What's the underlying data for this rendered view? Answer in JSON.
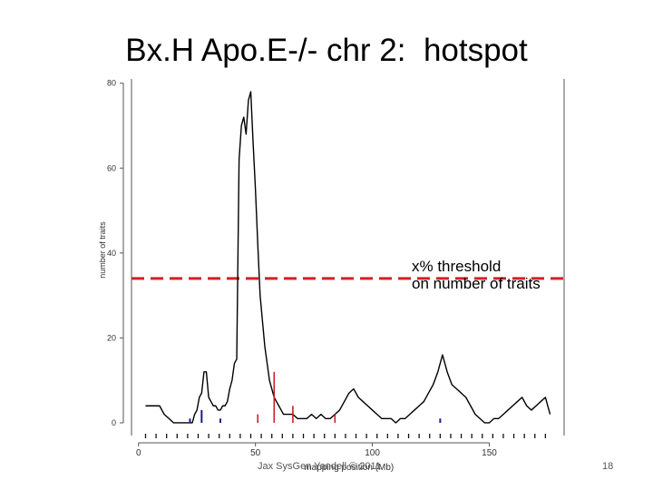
{
  "slide": {
    "title": "Bx.H Apo.E-/- chr 2:  hotspot",
    "footer_left": "Jax SysGen Yandell © 2011",
    "page_number": "18"
  },
  "annotation": {
    "line1": "x% threshold",
    "line2": "on number of traits"
  },
  "colors": {
    "curve": "#000000",
    "threshold": "#d42020",
    "red_marks": "#cc1f1f",
    "blue_marks": "#1a1a8c",
    "axis": "#555555"
  },
  "chart_data": {
    "type": "line",
    "xlabel": "mapping position (Mb)",
    "ylabel": "number of traits",
    "xlim": [
      -3,
      182
    ],
    "ylim": [
      -3,
      81
    ],
    "xticks": [
      0,
      50,
      100,
      150
    ],
    "yticks": [
      0,
      20,
      40,
      60,
      80
    ],
    "threshold": 34,
    "series": [
      {
        "x": [
          3,
          7,
          9,
          11,
          13,
          15,
          17,
          19,
          21,
          22,
          23,
          24,
          25,
          26,
          27,
          28,
          29,
          30,
          31,
          32,
          33,
          34,
          35,
          36,
          37,
          38,
          39,
          40,
          41,
          42,
          43,
          44,
          45,
          46,
          47,
          48,
          49,
          50,
          51,
          52,
          53,
          54,
          55,
          56,
          57,
          58,
          59,
          60,
          61,
          62,
          63,
          64,
          66,
          68,
          70,
          72,
          74,
          76,
          78,
          80,
          82,
          84,
          86,
          88,
          90,
          92,
          94,
          96,
          98,
          100,
          102,
          104,
          106,
          108,
          110,
          112,
          114,
          116,
          118,
          120,
          122,
          124,
          126,
          128,
          130,
          132,
          134,
          136,
          138,
          140,
          142,
          144,
          146,
          148,
          150,
          152,
          154,
          156,
          158,
          160,
          162,
          164,
          166,
          168,
          170,
          172,
          174,
          176
        ],
        "values": [
          4,
          4,
          4,
          2,
          1,
          0,
          0,
          0,
          0,
          0,
          0,
          2,
          3,
          6,
          7,
          12,
          12,
          6,
          5,
          4,
          4,
          3,
          3,
          4,
          4,
          5,
          8,
          10,
          14,
          15,
          62,
          70,
          72,
          68,
          76,
          78,
          66,
          55,
          42,
          30,
          24,
          18,
          14,
          10,
          8,
          6,
          5,
          4,
          3,
          2,
          2,
          2,
          2,
          1,
          1,
          1,
          2,
          1,
          2,
          1,
          1,
          2,
          3,
          5,
          7,
          8,
          6,
          5,
          4,
          3,
          2,
          1,
          1,
          1,
          0,
          1,
          1,
          2,
          3,
          4,
          5,
          7,
          9,
          12,
          16,
          12,
          9,
          8,
          7,
          6,
          4,
          2,
          1,
          0,
          0,
          1,
          1,
          2,
          3,
          4,
          5,
          6,
          4,
          3,
          4,
          5,
          6,
          2
        ]
      }
    ],
    "red_marks": [
      {
        "x": 51,
        "height": 2
      },
      {
        "x": 58,
        "height": 12
      },
      {
        "x": 66,
        "height": 4
      },
      {
        "x": 84,
        "height": 2
      }
    ],
    "blue_marks": [
      {
        "x": 22,
        "height": 1
      },
      {
        "x": 27,
        "height": 3
      },
      {
        "x": 35,
        "height": 1
      },
      {
        "x": 129,
        "height": 1
      }
    ]
  }
}
